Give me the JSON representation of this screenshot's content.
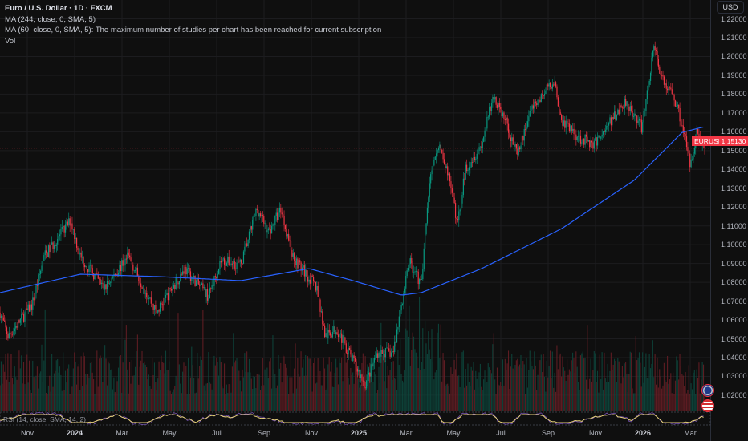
{
  "legend": {
    "title": "Euro / U.S. Dollar · 1D · FXCM",
    "ma244": "MA (244, close, 0, SMA, 5)",
    "ma60": "MA (60, close, 0, SMA, 5): The maximum number of studies per chart has been reached for current subscription",
    "vol": "Vol"
  },
  "currency_button": "USD",
  "symbol_label": "EURUSD",
  "last_price_label": "1.15130",
  "rsi_label": "RSI (14, close, SMA, 14, 2)",
  "colors": {
    "up": "#089981",
    "down": "#f23645",
    "ma": "#2962ff",
    "rsi": "#7e57c2",
    "rsi_ma": "#e8d27a",
    "bg": "#0f0f0f"
  },
  "chart_data": {
    "type": "candlestick",
    "symbol": "EURUSD",
    "interval": "1D",
    "x_unit": "months since 2023-10-01",
    "ylim": [
      1.015,
      1.222
    ],
    "y_ticks": [
      "1.22000",
      "1.21000",
      "1.20000",
      "1.19000",
      "1.18000",
      "1.17000",
      "1.16000",
      "1.15000",
      "1.14000",
      "1.13000",
      "1.12000",
      "1.11000",
      "1.10000",
      "1.09000",
      "1.08000",
      "1.07000",
      "1.06000",
      "1.05000",
      "1.04000",
      "1.03000",
      "1.02000"
    ],
    "x_ticks": [
      {
        "label": "Nov",
        "t": 1
      },
      {
        "label": "2024",
        "t": 3,
        "year": true
      },
      {
        "label": "Mar",
        "t": 5
      },
      {
        "label": "May",
        "t": 7
      },
      {
        "label": "Jul",
        "t": 9
      },
      {
        "label": "Sep",
        "t": 11
      },
      {
        "label": "Nov",
        "t": 13
      },
      {
        "label": "2025",
        "t": 15,
        "year": true
      },
      {
        "label": "Mar",
        "t": 17
      },
      {
        "label": "May",
        "t": 19
      },
      {
        "label": "Jul",
        "t": 21
      },
      {
        "label": "Sep",
        "t": 23
      },
      {
        "label": "Nov",
        "t": 25
      },
      {
        "label": "2026",
        "t": 27,
        "year": true
      },
      {
        "label": "Mar",
        "t": 29
      }
    ],
    "price_path": [
      [
        -0.15,
        1.0639
      ],
      [
        0.19,
        1.0511
      ],
      [
        1.2,
        1.0681
      ],
      [
        1.71,
        1.0937
      ],
      [
        2.83,
        1.1129
      ],
      [
        3.24,
        1.0937
      ],
      [
        4.25,
        1.0767
      ],
      [
        5.27,
        1.0937
      ],
      [
        6.46,
        1.0639
      ],
      [
        7.64,
        1.0873
      ],
      [
        8.66,
        1.0724
      ],
      [
        9.17,
        1.0916
      ],
      [
        10.02,
        1.0894
      ],
      [
        10.7,
        1.1192
      ],
      [
        11.2,
        1.1065
      ],
      [
        11.71,
        1.1192
      ],
      [
        12.22,
        1.0937
      ],
      [
        13.24,
        1.0767
      ],
      [
        13.58,
        1.0511
      ],
      [
        14.08,
        1.0553
      ],
      [
        14.93,
        1.034
      ],
      [
        15.27,
        1.0255
      ],
      [
        15.78,
        1.0426
      ],
      [
        16.46,
        1.0426
      ],
      [
        16.8,
        1.0681
      ],
      [
        17.14,
        1.0916
      ],
      [
        17.64,
        1.0788
      ],
      [
        17.98,
        1.132
      ],
      [
        18.42,
        1.1554
      ],
      [
        18.83,
        1.1342
      ],
      [
        19.17,
        1.1107
      ],
      [
        19.51,
        1.1405
      ],
      [
        20.19,
        1.1533
      ],
      [
        20.69,
        1.1789
      ],
      [
        21.2,
        1.1661
      ],
      [
        21.71,
        1.1469
      ],
      [
        22.22,
        1.1704
      ],
      [
        23.24,
        1.1874
      ],
      [
        23.58,
        1.1661
      ],
      [
        24.25,
        1.1576
      ],
      [
        24.93,
        1.1533
      ],
      [
        25.44,
        1.1619
      ],
      [
        26.29,
        1.1768
      ],
      [
        26.97,
        1.1619
      ],
      [
        27.47,
        1.2066
      ],
      [
        27.81,
        1.1874
      ],
      [
        28.31,
        1.1789
      ],
      [
        28.66,
        1.164
      ],
      [
        29.0,
        1.1427
      ],
      [
        29.27,
        1.1597
      ],
      [
        29.61,
        1.1513
      ]
    ],
    "ma244_path": [
      [
        -0.15,
        1.0745
      ],
      [
        3.24,
        1.0843
      ],
      [
        6.63,
        1.083
      ],
      [
        10.02,
        1.0809
      ],
      [
        12.9,
        1.0873
      ],
      [
        14.76,
        1.0809
      ],
      [
        16.8,
        1.0732
      ],
      [
        17.64,
        1.0745
      ],
      [
        20.19,
        1.0873
      ],
      [
        23.58,
        1.1086
      ],
      [
        26.63,
        1.1342
      ],
      [
        28.66,
        1.1597
      ],
      [
        29.61,
        1.1627
      ]
    ],
    "last_price": 1.1513,
    "bars_per_month": 21
  }
}
